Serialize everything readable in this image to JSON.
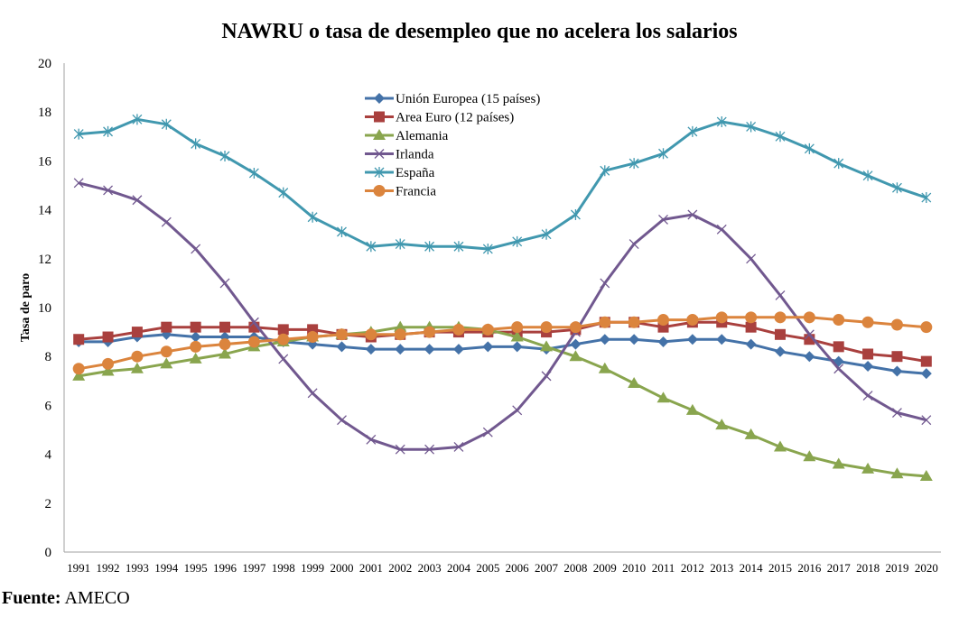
{
  "chart_data": {
    "type": "line",
    "title": "NAWRU o tasa de desempleo que no acelera los salarios",
    "xlabel": "",
    "ylabel": "Tasa de paro",
    "ylim": [
      0,
      20
    ],
    "yticks": [
      "0",
      "2",
      "4",
      "6",
      "8",
      "10",
      "12",
      "14",
      "16",
      "18",
      "20"
    ],
    "grid": false,
    "legend_position": "top-center",
    "x": [
      "1991",
      "1992",
      "1993",
      "1994",
      "1995",
      "1996",
      "1997",
      "1998",
      "1999",
      "2000",
      "2001",
      "2002",
      "2003",
      "2004",
      "2005",
      "2006",
      "2007",
      "2008",
      "2009",
      "2010",
      "2011",
      "2012",
      "2013",
      "2014",
      "2015",
      "2016",
      "2017",
      "2018",
      "2019",
      "2020"
    ],
    "series": [
      {
        "name": "Unión Europea (15 países)",
        "color": "#4472a8",
        "marker": "diamond",
        "values": [
          8.6,
          8.6,
          8.8,
          8.9,
          8.8,
          8.8,
          8.8,
          8.6,
          8.5,
          8.4,
          8.3,
          8.3,
          8.3,
          8.3,
          8.4,
          8.4,
          8.3,
          8.5,
          8.7,
          8.7,
          8.6,
          8.7,
          8.7,
          8.5,
          8.2,
          8.0,
          7.8,
          7.6,
          7.4,
          7.3
        ]
      },
      {
        "name": "Area Euro (12 países)",
        "color": "#a9403e",
        "marker": "square",
        "values": [
          8.7,
          8.8,
          9.0,
          9.2,
          9.2,
          9.2,
          9.2,
          9.1,
          9.1,
          8.9,
          8.8,
          8.9,
          9.0,
          9.0,
          9.0,
          9.0,
          9.0,
          9.1,
          9.4,
          9.4,
          9.2,
          9.4,
          9.4,
          9.2,
          8.9,
          8.7,
          8.4,
          8.1,
          8.0,
          7.8
        ]
      },
      {
        "name": "Alemania",
        "color": "#89a54e",
        "marker": "triangle",
        "values": [
          7.2,
          7.4,
          7.5,
          7.7,
          7.9,
          8.1,
          8.4,
          8.6,
          8.8,
          8.9,
          9.0,
          9.2,
          9.2,
          9.2,
          9.1,
          8.8,
          8.4,
          8.0,
          7.5,
          6.9,
          6.3,
          5.8,
          5.2,
          4.8,
          4.3,
          3.9,
          3.6,
          3.4,
          3.2,
          3.1
        ]
      },
      {
        "name": "Irlanda",
        "color": "#71588f",
        "marker": "x",
        "values": [
          15.1,
          14.8,
          14.4,
          13.5,
          12.4,
          11.0,
          9.4,
          7.9,
          6.5,
          5.4,
          4.6,
          4.2,
          4.2,
          4.3,
          4.9,
          5.8,
          7.2,
          9.0,
          11.0,
          12.6,
          13.6,
          13.8,
          13.2,
          12.0,
          10.5,
          8.9,
          7.5,
          6.4,
          5.7,
          5.4
        ]
      },
      {
        "name": "España",
        "color": "#4198af",
        "marker": "star",
        "values": [
          17.1,
          17.2,
          17.7,
          17.5,
          16.7,
          16.2,
          15.5,
          14.7,
          13.7,
          13.1,
          12.5,
          12.6,
          12.5,
          12.5,
          12.4,
          12.7,
          13.0,
          13.8,
          15.6,
          15.9,
          16.3,
          17.2,
          17.6,
          17.4,
          17.0,
          16.5,
          15.9,
          15.4,
          14.9,
          14.5
        ]
      },
      {
        "name": "Francia",
        "color": "#db843d",
        "marker": "circle",
        "values": [
          7.5,
          7.7,
          8.0,
          8.2,
          8.4,
          8.5,
          8.6,
          8.7,
          8.8,
          8.9,
          8.9,
          8.9,
          9.0,
          9.1,
          9.1,
          9.2,
          9.2,
          9.2,
          9.4,
          9.4,
          9.5,
          9.5,
          9.6,
          9.6,
          9.6,
          9.6,
          9.5,
          9.4,
          9.3,
          9.2
        ]
      }
    ]
  },
  "source": {
    "label": "Fuente:",
    "value": "AMECO"
  }
}
